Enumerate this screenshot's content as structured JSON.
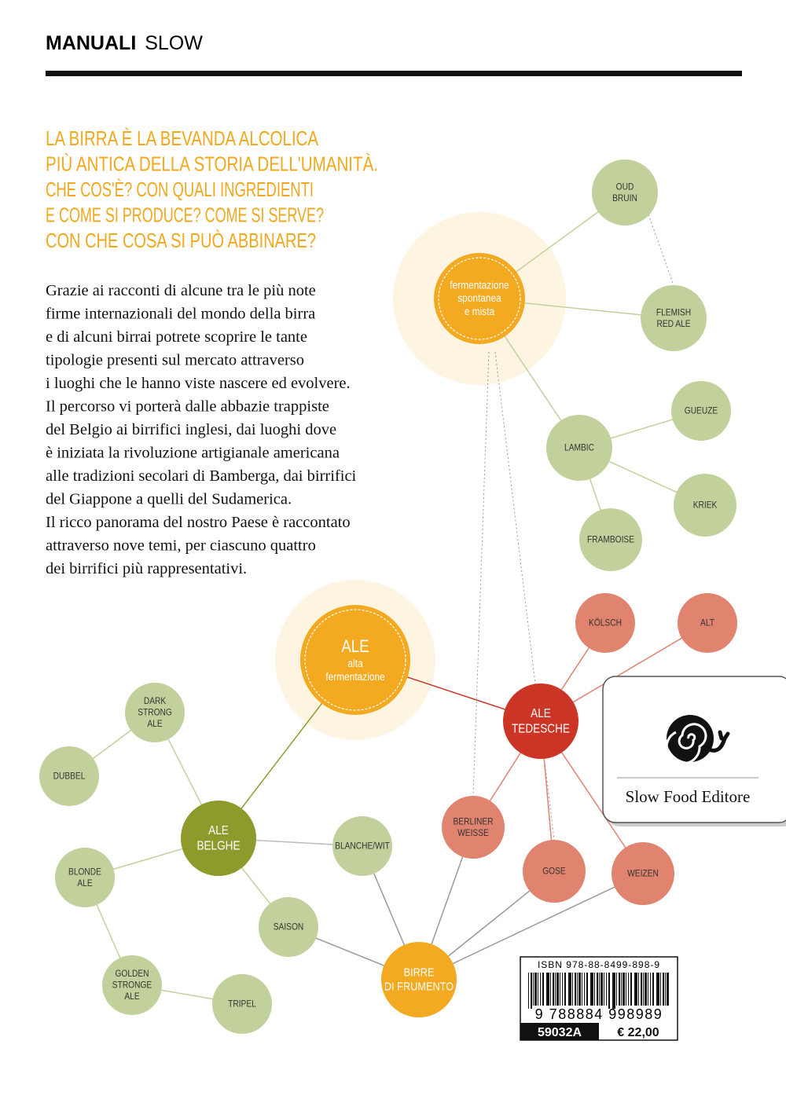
{
  "header": {
    "brand": "MANUALI",
    "series": "SLOW"
  },
  "headline": [
    "LA BIRRA È LA BEVANDA ALCOLICA",
    "PIÙ ANTICA DELLA STORIA DELL'UMANITÀ.",
    "CHE COS'È? CON QUALI INGREDIENTI",
    "E COME SI PRODUCE? COME SI SERVE?",
    "CON CHE COSA SI PUÒ ABBINARE?"
  ],
  "body": [
    "Grazie ai racconti di alcune tra le più note",
    "firme internazionali del mondo della birra",
    "e di alcuni birrai potrete scoprire le tante",
    "tipologie presenti sul mercato attraverso",
    "i luoghi che le hanno viste nascere ed evolvere.",
    "Il percorso vi porterà dalle abbazie trappiste",
    "del Belgio ai birrifici inglesi, dai luoghi dove",
    "è iniziata la rivoluzione artigianale americana",
    "alle tradizioni secolari di Bamberga, dai birrifici",
    "del Giappone a quelli del Sudamerica.",
    "Il ricco panorama del nostro Paese è raccontato",
    "attraverso nove temi, per ciascuno quattro",
    "dei birrifici più rappresentativi."
  ],
  "nodes": [
    {
      "lines": [
        "fermentazione",
        "spontanea",
        "e mista"
      ]
    },
    {
      "lines": [
        "OUD",
        "BRUIN"
      ]
    },
    {
      "lines": [
        "FLEMISH",
        "RED ALE"
      ]
    },
    {
      "lines": [
        "GUEUZE"
      ]
    },
    {
      "lines": [
        "LAMBIC"
      ]
    },
    {
      "lines": [
        "KRIEK"
      ]
    },
    {
      "lines": [
        "FRAMBOISE"
      ]
    },
    {
      "lines": [
        "ALE",
        "alta",
        "fermentazione"
      ]
    },
    {
      "lines": [
        "KÖLSCH"
      ]
    },
    {
      "lines": [
        "ALT"
      ]
    },
    {
      "lines": [
        "ALE",
        "TEDESCHE"
      ]
    },
    {
      "lines": [
        "DARK",
        "STRONG",
        "ALE"
      ]
    },
    {
      "lines": [
        "DUBBEL"
      ]
    },
    {
      "lines": [
        "ALE",
        "BELGHE"
      ]
    },
    {
      "lines": [
        "BLANCHE/WIT"
      ]
    },
    {
      "lines": [
        "BERLINER",
        "WEISSE"
      ]
    },
    {
      "lines": [
        "GOSE"
      ]
    },
    {
      "lines": [
        "WEIZEN"
      ]
    },
    {
      "lines": [
        "BLONDE",
        "ALE"
      ]
    },
    {
      "lines": [
        "SAISON"
      ]
    },
    {
      "lines": [
        "BIRRE",
        "DI FRUMENTO"
      ]
    },
    {
      "lines": [
        "GOLDEN",
        "STRONGE",
        "ALE"
      ]
    },
    {
      "lines": [
        "TRIPEL"
      ]
    }
  ],
  "publisher": "Slow Food Editore",
  "barcode": {
    "isbn": "ISBN 978-88-8499-898-9",
    "digits": "9 788884 998989",
    "code": "59032A",
    "price": "€ 22,00"
  }
}
